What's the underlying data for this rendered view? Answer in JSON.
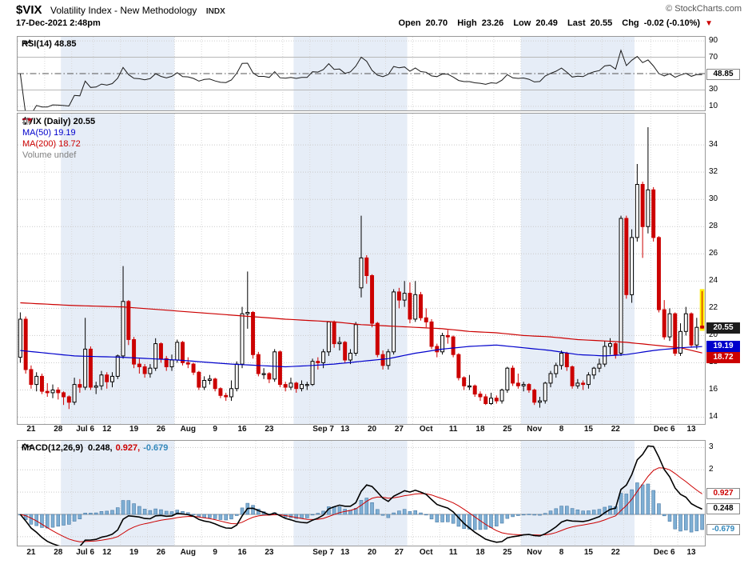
{
  "header": {
    "symbol": "$VIX",
    "title": "Volatility Index - New Methodology",
    "exchange": "INDX",
    "copyright": "© StockCharts.com",
    "datetime": "17-Dec-2021 2:48pm",
    "quote": {
      "open_label": "Open",
      "open_value": "20.70",
      "high_label": "High",
      "high_value": "23.26",
      "low_label": "Low",
      "low_value": "20.49",
      "last_label": "Last",
      "last_value": "20.55",
      "chg_label": "Chg",
      "chg_value": "-0.02 (-0.10%)",
      "down_arrow": "▼"
    }
  },
  "rsi_panel": {
    "label": "RSI(14) 48.85",
    "box": {
      "text": "48.85",
      "value": 48.85
    },
    "ticks": [
      90,
      70,
      50,
      30,
      10
    ]
  },
  "main_panel": {
    "legend": {
      "symbol_row": "$VIX (Daily) 20.55",
      "ma50_row": "MA(50) 19.19",
      "ma200_row": "MA(200) 18.72",
      "volume_row": "Volume undef"
    },
    "ticks": [
      34,
      32,
      30,
      28,
      26,
      24,
      22,
      20,
      18,
      16,
      14
    ],
    "boxes": [
      {
        "text": "20.55",
        "value": 20.55,
        "bg": "#1c1c1c",
        "fg": "#ffffff"
      },
      {
        "text": "19.19",
        "value": 19.19,
        "bg": "#0000cc",
        "fg": "#ffffff"
      },
      {
        "text": "18.72",
        "value": 18.72,
        "bg": "#cc0000",
        "fg": "#ffffff"
      }
    ]
  },
  "macd_panel": {
    "label": "MACD(12,26,9)",
    "macd_value": "0.248,",
    "signal_value": "0.927,",
    "hist_value": "-0.679",
    "ticks": [
      3,
      2,
      1
    ],
    "boxes": [
      {
        "text": "0.927",
        "value": 0.927,
        "color": "#cc0000"
      },
      {
        "text": "0.248",
        "value": 0.248,
        "color": "#000000"
      },
      {
        "text": "-0.679",
        "value": -0.679,
        "color": "#3388bb"
      }
    ]
  },
  "chart_data": {
    "type": "candlestick",
    "symbol": "$VIX",
    "timeframe": "Daily",
    "panels": [
      "RSI(14)",
      "price with MA(50) and MA(200)",
      "MACD(12,26,9)"
    ],
    "main_ylim": [
      13.5,
      36.3
    ],
    "rsi_ylim": [
      5,
      95
    ],
    "macd_ylim": [
      -1.4,
      3.3
    ],
    "macd_grid": [
      3,
      2,
      1,
      0,
      -1
    ],
    "last_values": {
      "close": 20.55,
      "ma50": 19.19,
      "ma200": 18.72,
      "rsi": 48.85,
      "macd": 0.248,
      "macd_signal": 0.927,
      "macd_hist": -0.679
    },
    "colors": {
      "up": "#000000",
      "down": "#cc0000",
      "ma50": "#0000cc",
      "ma200": "#cc0000",
      "hist_fill": "#7fafd4",
      "hist_stroke": "#4a7aa6",
      "band": "#e6edf7",
      "highlight": "#ffec00",
      "rsi_line": "#1a1a1a",
      "macd_line": "#000000",
      "signal_line": "#cc0000"
    },
    "xlabels": [
      {
        "i": 0,
        "t": "21"
      },
      {
        "i": 5,
        "t": "28"
      },
      {
        "i": 10,
        "t": "Jul 6",
        "m": true
      },
      {
        "i": 14,
        "t": "12"
      },
      {
        "i": 19,
        "t": "19"
      },
      {
        "i": 24,
        "t": "26"
      },
      {
        "i": 29,
        "t": "Aug",
        "m": true
      },
      {
        "i": 34,
        "t": "9"
      },
      {
        "i": 39,
        "t": "16"
      },
      {
        "i": 44,
        "t": "23"
      },
      {
        "i": 49,
        "t": ""
      },
      {
        "i": 54,
        "t": "Sep 7",
        "m": true
      },
      {
        "i": 58,
        "t": "13"
      },
      {
        "i": 63,
        "t": "20"
      },
      {
        "i": 68,
        "t": "27"
      },
      {
        "i": 73,
        "t": "Oct",
        "m": true
      },
      {
        "i": 78,
        "t": "11"
      },
      {
        "i": 83,
        "t": "18"
      },
      {
        "i": 88,
        "t": "25"
      },
      {
        "i": 93,
        "t": "Nov",
        "m": true
      },
      {
        "i": 98,
        "t": "8"
      },
      {
        "i": 103,
        "t": "15"
      },
      {
        "i": 108,
        "t": "22"
      },
      {
        "i": 112,
        "t": ""
      },
      {
        "i": 117,
        "t": "Dec 6",
        "m": true
      },
      {
        "i": 122,
        "t": "13"
      }
    ],
    "month_bands": [
      {
        "s": 0,
        "e": 7,
        "shade": false
      },
      {
        "s": 8,
        "e": 28,
        "shade": true
      },
      {
        "s": 29,
        "e": 50,
        "shade": false
      },
      {
        "s": 51,
        "e": 71,
        "shade": true
      },
      {
        "s": 72,
        "e": 92,
        "shade": false
      },
      {
        "s": 93,
        "e": 113,
        "shade": true
      },
      {
        "s": 114,
        "e": 126,
        "shade": false
      }
    ],
    "ma50_points": [
      [
        0,
        18.9
      ],
      [
        10,
        18.5
      ],
      [
        19,
        18.4
      ],
      [
        29,
        18.2
      ],
      [
        39,
        17.9
      ],
      [
        49,
        17.7
      ],
      [
        54,
        17.8
      ],
      [
        58,
        17.9
      ],
      [
        63,
        18.1
      ],
      [
        68,
        18.3
      ],
      [
        73,
        18.7
      ],
      [
        78,
        19.0
      ],
      [
        83,
        19.2
      ],
      [
        88,
        19.3
      ],
      [
        93,
        19.1
      ],
      [
        98,
        18.9
      ],
      [
        103,
        18.6
      ],
      [
        108,
        18.5
      ],
      [
        112,
        18.6
      ],
      [
        117,
        18.9
      ],
      [
        122,
        19.1
      ],
      [
        126,
        19.19
      ]
    ],
    "ma200_points": [
      [
        0,
        22.4
      ],
      [
        10,
        22.2
      ],
      [
        19,
        22.1
      ],
      [
        29,
        21.8
      ],
      [
        39,
        21.5
      ],
      [
        49,
        21.2
      ],
      [
        58,
        21.0
      ],
      [
        63,
        20.8
      ],
      [
        68,
        20.7
      ],
      [
        73,
        20.6
      ],
      [
        78,
        20.5
      ],
      [
        83,
        20.3
      ],
      [
        88,
        20.2
      ],
      [
        93,
        20.0
      ],
      [
        98,
        19.9
      ],
      [
        103,
        19.7
      ],
      [
        108,
        19.6
      ],
      [
        112,
        19.5
      ],
      [
        117,
        19.3
      ],
      [
        122,
        19.1
      ],
      [
        126,
        18.72
      ]
    ],
    "candles": [
      [
        18.4,
        21.7,
        18.0,
        21.2
      ],
      [
        21.2,
        21.4,
        17.2,
        17.5
      ],
      [
        17.5,
        17.8,
        16.1,
        16.4
      ],
      [
        16.4,
        17.3,
        15.9,
        17.0
      ],
      [
        17.0,
        17.2,
        15.7,
        15.9
      ],
      [
        15.9,
        16.5,
        15.5,
        15.8
      ],
      [
        15.8,
        16.4,
        15.4,
        16.0
      ],
      [
        16.0,
        16.2,
        15.3,
        15.8
      ],
      [
        15.8,
        15.9,
        14.9,
        15.5
      ],
      [
        15.5,
        15.6,
        14.6,
        15.1
      ],
      [
        15.1,
        16.9,
        14.9,
        16.4
      ],
      [
        16.4,
        16.8,
        15.8,
        16.2
      ],
      [
        16.2,
        21.3,
        16.0,
        19.0
      ],
      [
        19.0,
        19.2,
        16.0,
        16.2
      ],
      [
        16.2,
        16.6,
        15.7,
        16.3
      ],
      [
        16.3,
        17.4,
        16.0,
        17.1
      ],
      [
        17.1,
        17.3,
        16.1,
        16.6
      ],
      [
        16.6,
        17.3,
        16.2,
        17.0
      ],
      [
        17.0,
        18.6,
        16.8,
        18.5
      ],
      [
        18.5,
        25.1,
        18.3,
        22.5
      ],
      [
        22.5,
        22.6,
        19.3,
        19.7
      ],
      [
        19.7,
        19.9,
        17.6,
        17.9
      ],
      [
        17.9,
        18.3,
        17.2,
        17.7
      ],
      [
        17.7,
        17.9,
        16.9,
        17.2
      ],
      [
        17.2,
        17.9,
        16.9,
        17.6
      ],
      [
        17.6,
        19.8,
        17.4,
        19.4
      ],
      [
        19.4,
        19.5,
        18.0,
        18.3
      ],
      [
        18.3,
        18.5,
        17.4,
        17.7
      ],
      [
        17.7,
        18.6,
        17.4,
        18.2
      ],
      [
        18.2,
        19.7,
        18.0,
        19.5
      ],
      [
        19.5,
        19.6,
        17.8,
        18.0
      ],
      [
        18.0,
        18.4,
        17.6,
        17.9
      ],
      [
        17.9,
        18.0,
        17.1,
        17.3
      ],
      [
        17.3,
        17.4,
        16.0,
        16.2
      ],
      [
        16.2,
        17.0,
        16.0,
        16.7
      ],
      [
        16.7,
        17.1,
        16.4,
        16.8
      ],
      [
        16.8,
        16.9,
        15.9,
        16.1
      ],
      [
        16.1,
        16.2,
        15.4,
        15.6
      ],
      [
        15.6,
        15.8,
        15.2,
        15.5
      ],
      [
        15.5,
        16.7,
        15.2,
        16.1
      ],
      [
        16.1,
        18.1,
        15.9,
        17.9
      ],
      [
        17.9,
        22.1,
        17.6,
        21.6
      ],
      [
        21.6,
        24.7,
        20.5,
        21.7
      ],
      [
        21.7,
        21.8,
        18.3,
        18.6
      ],
      [
        18.6,
        18.8,
        17.0,
        17.2
      ],
      [
        17.2,
        17.6,
        16.8,
        17.2
      ],
      [
        17.2,
        17.3,
        16.5,
        16.8
      ],
      [
        16.8,
        19.0,
        16.6,
        18.8
      ],
      [
        18.8,
        18.9,
        16.2,
        16.4
      ],
      [
        16.4,
        16.6,
        15.9,
        16.2
      ],
      [
        16.2,
        16.9,
        16.0,
        16.5
      ],
      [
        16.5,
        16.6,
        15.8,
        16.1
      ],
      [
        16.1,
        16.7,
        15.9,
        16.4
      ],
      [
        16.4,
        16.6,
        16.0,
        16.4
      ],
      [
        16.4,
        18.3,
        16.3,
        18.1
      ],
      [
        18.1,
        18.4,
        17.5,
        18.0
      ],
      [
        18.0,
        19.0,
        17.6,
        18.8
      ],
      [
        18.8,
        21.0,
        18.5,
        21.0
      ],
      [
        21.0,
        21.1,
        19.1,
        19.4
      ],
      [
        19.4,
        19.9,
        18.9,
        19.5
      ],
      [
        19.5,
        19.6,
        18.0,
        18.2
      ],
      [
        18.2,
        19.0,
        17.9,
        18.7
      ],
      [
        18.7,
        21.0,
        18.5,
        20.8
      ],
      [
        23.5,
        28.8,
        22.8,
        25.7
      ],
      [
        25.7,
        25.9,
        23.8,
        24.4
      ],
      [
        24.4,
        24.5,
        20.6,
        20.9
      ],
      [
        20.9,
        21.0,
        18.4,
        18.6
      ],
      [
        18.6,
        18.9,
        17.5,
        17.8
      ],
      [
        17.8,
        19.0,
        17.5,
        18.8
      ],
      [
        18.8,
        23.4,
        18.6,
        23.2
      ],
      [
        23.2,
        23.5,
        22.0,
        22.6
      ],
      [
        22.6,
        24.0,
        22.1,
        23.1
      ],
      [
        23.1,
        23.9,
        20.9,
        21.2
      ],
      [
        21.2,
        24.0,
        21.0,
        23.0
      ],
      [
        23.0,
        23.2,
        21.1,
        21.3
      ],
      [
        21.3,
        22.0,
        20.6,
        21.0
      ],
      [
        21.0,
        21.2,
        19.0,
        19.2
      ],
      [
        19.2,
        19.4,
        18.4,
        18.8
      ],
      [
        18.8,
        20.2,
        18.6,
        20.0
      ],
      [
        20.0,
        20.4,
        19.4,
        19.9
      ],
      [
        19.9,
        20.0,
        18.4,
        18.6
      ],
      [
        18.6,
        18.7,
        16.7,
        16.9
      ],
      [
        16.9,
        17.0,
        16.0,
        16.3
      ],
      [
        16.3,
        17.1,
        16.0,
        16.3
      ],
      [
        16.3,
        16.4,
        15.5,
        15.7
      ],
      [
        15.7,
        15.9,
        15.2,
        15.5
      ],
      [
        15.5,
        15.7,
        14.9,
        15.0
      ],
      [
        15.0,
        15.8,
        14.9,
        15.4
      ],
      [
        15.4,
        15.6,
        15.0,
        15.2
      ],
      [
        15.2,
        16.1,
        15.0,
        16.0
      ],
      [
        16.0,
        17.7,
        15.8,
        17.6
      ],
      [
        17.6,
        17.8,
        16.3,
        16.5
      ],
      [
        16.5,
        17.2,
        16.1,
        16.3
      ],
      [
        16.3,
        16.6,
        15.9,
        16.4
      ],
      [
        16.4,
        16.5,
        15.8,
        16.0
      ],
      [
        16.0,
        16.1,
        14.9,
        15.1
      ],
      [
        15.1,
        15.5,
        14.7,
        15.2
      ],
      [
        15.2,
        16.6,
        15.0,
        16.5
      ],
      [
        16.5,
        17.4,
        16.2,
        17.2
      ],
      [
        17.2,
        18.0,
        16.9,
        17.8
      ],
      [
        17.8,
        18.9,
        17.5,
        18.7
      ],
      [
        18.7,
        18.8,
        17.4,
        17.7
      ],
      [
        17.7,
        17.8,
        16.1,
        16.3
      ],
      [
        16.3,
        16.8,
        16.1,
        16.5
      ],
      [
        16.5,
        16.7,
        16.0,
        16.4
      ],
      [
        16.4,
        17.3,
        16.1,
        17.1
      ],
      [
        17.1,
        17.7,
        16.8,
        17.6
      ],
      [
        17.6,
        18.3,
        17.3,
        17.9
      ],
      [
        17.9,
        19.6,
        17.7,
        19.2
      ],
      [
        19.2,
        19.8,
        18.6,
        19.4
      ],
      [
        19.4,
        19.5,
        18.3,
        18.6
      ],
      [
        18.7,
        28.8,
        18.5,
        28.6
      ],
      [
        28.6,
        28.8,
        22.7,
        23.0
      ],
      [
        23.0,
        27.8,
        22.4,
        27.2
      ],
      [
        27.2,
        32.6,
        26.9,
        31.1
      ],
      [
        31.1,
        31.3,
        25.7,
        28.0
      ],
      [
        28.0,
        35.3,
        27.5,
        30.7
      ],
      [
        30.7,
        30.9,
        26.9,
        27.2
      ],
      [
        27.2,
        27.3,
        21.7,
        21.9
      ],
      [
        21.9,
        22.6,
        19.7,
        19.9
      ],
      [
        19.9,
        22.0,
        19.6,
        21.6
      ],
      [
        21.6,
        21.7,
        18.5,
        18.7
      ],
      [
        18.7,
        20.9,
        18.5,
        20.3
      ],
      [
        20.3,
        22.1,
        20.0,
        21.6
      ],
      [
        21.6,
        21.7,
        19.1,
        19.3
      ],
      [
        19.3,
        21.3,
        19.0,
        20.6
      ],
      [
        20.7,
        23.26,
        20.49,
        20.55
      ]
    ]
  }
}
